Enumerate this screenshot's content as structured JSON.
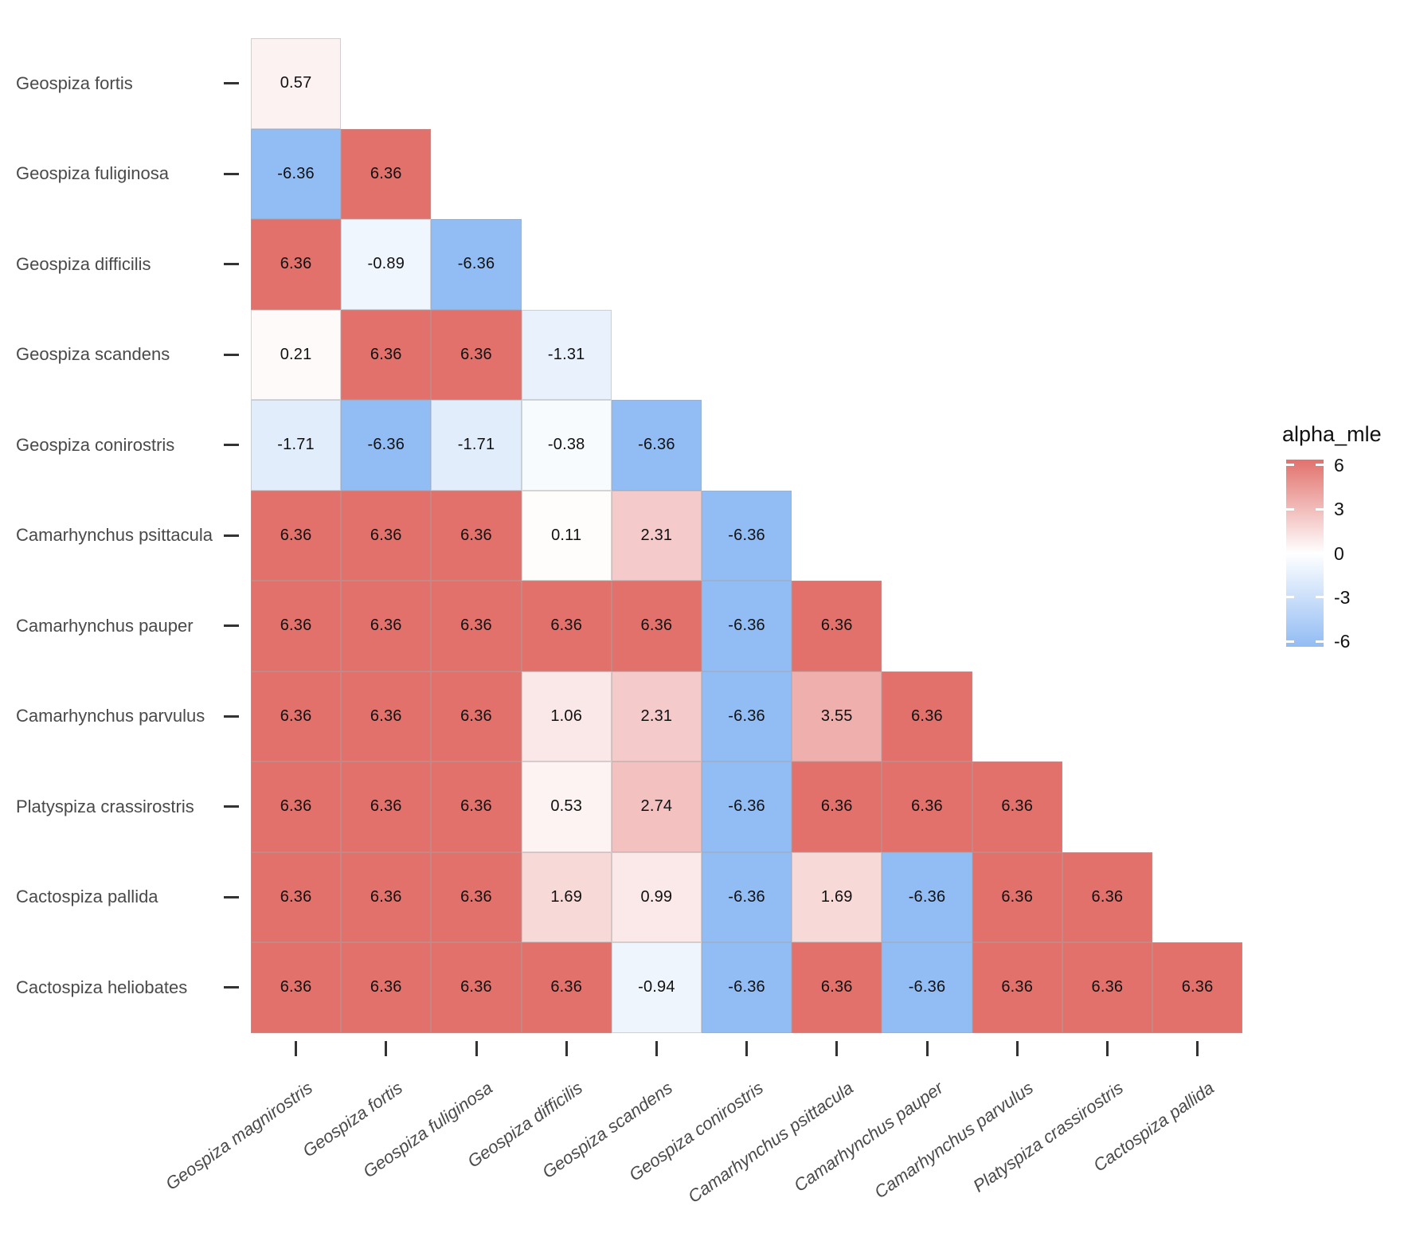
{
  "legend": {
    "title": "alpha_mle",
    "tick_labels": [
      "6",
      "3",
      "0",
      "-3",
      "-6"
    ]
  },
  "chart_data": {
    "type": "heatmap",
    "title": "",
    "xlabel": "",
    "ylabel": "",
    "legend_title": "alpha_mle",
    "legend_position": "right",
    "grid": false,
    "shape": "lower-triangle",
    "x_categories": [
      "Geospiza magnirostris",
      "Geospiza fortis",
      "Geospiza fuliginosa",
      "Geospiza difficilis",
      "Geospiza scandens",
      "Geospiza conirostris",
      "Camarhynchus psittacula",
      "Camarhynchus pauper",
      "Camarhynchus parvulus",
      "Platyspiza crassirostris",
      "Cactospiza pallida"
    ],
    "y_categories": [
      "Geospiza fortis",
      "Geospiza fuliginosa",
      "Geospiza difficilis",
      "Geospiza scandens",
      "Geospiza conirostris",
      "Camarhynchus psittacula",
      "Camarhynchus pauper",
      "Camarhynchus parvulus",
      "Platyspiza crassirostris",
      "Cactospiza pallida",
      "Cactospiza heliobates"
    ],
    "matrix": [
      [
        0.57,
        null,
        null,
        null,
        null,
        null,
        null,
        null,
        null,
        null,
        null
      ],
      [
        -6.36,
        6.36,
        null,
        null,
        null,
        null,
        null,
        null,
        null,
        null,
        null
      ],
      [
        6.36,
        -0.89,
        -6.36,
        null,
        null,
        null,
        null,
        null,
        null,
        null,
        null
      ],
      [
        0.21,
        6.36,
        6.36,
        -1.31,
        null,
        null,
        null,
        null,
        null,
        null,
        null
      ],
      [
        -1.71,
        -6.36,
        -1.71,
        -0.38,
        -6.36,
        null,
        null,
        null,
        null,
        null,
        null
      ],
      [
        6.36,
        6.36,
        6.36,
        0.11,
        2.31,
        -6.36,
        null,
        null,
        null,
        null,
        null
      ],
      [
        6.36,
        6.36,
        6.36,
        6.36,
        6.36,
        -6.36,
        6.36,
        null,
        null,
        null,
        null
      ],
      [
        6.36,
        6.36,
        6.36,
        1.06,
        2.31,
        -6.36,
        3.55,
        6.36,
        null,
        null,
        null
      ],
      [
        6.36,
        6.36,
        6.36,
        0.53,
        2.74,
        -6.36,
        6.36,
        6.36,
        6.36,
        null,
        null
      ],
      [
        6.36,
        6.36,
        6.36,
        1.69,
        0.99,
        -6.36,
        1.69,
        -6.36,
        6.36,
        6.36,
        null
      ],
      [
        6.36,
        6.36,
        6.36,
        6.36,
        -0.94,
        -6.36,
        6.36,
        -6.36,
        6.36,
        6.36,
        6.36
      ]
    ],
    "value_decimals": 2,
    "color_scale": {
      "low": "#92bcf4",
      "mid": "#ffffff",
      "high": "#e2716c",
      "domain": [
        -6.36,
        6.36
      ],
      "legend_ticks": [
        6,
        3,
        0,
        -3,
        -6
      ]
    },
    "style_colors": {
      "axis_text": "#4a4a4a",
      "tick_mark": "#333333",
      "cell_text": "#111111",
      "cell_border": "#c9c9c9"
    }
  }
}
